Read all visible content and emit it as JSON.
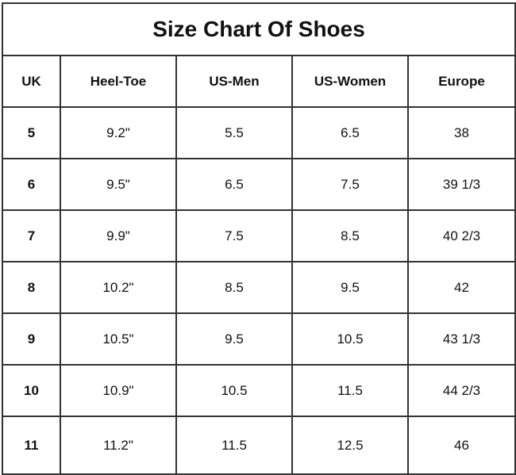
{
  "title": "Size Chart Of Shoes",
  "headers": [
    "UK",
    "Heel-Toe",
    "US-Men",
    "US-Women",
    "Europe"
  ],
  "rows": [
    [
      "5",
      "9.2\"",
      "5.5",
      "6.5",
      "38"
    ],
    [
      "6",
      "9.5\"",
      "6.5",
      "7.5",
      "39 1/3"
    ],
    [
      "7",
      "9.9\"",
      "7.5",
      "8.5",
      "40 2/3"
    ],
    [
      "8",
      "10.2\"",
      "8.5",
      "9.5",
      "42"
    ],
    [
      "9",
      "10.5\"",
      "9.5",
      "10.5",
      "43 1/3"
    ],
    [
      "10",
      "10.9\"",
      "10.5",
      "11.5",
      "44 2/3"
    ],
    [
      "11",
      "11.2\"",
      "11.5",
      "12.5",
      "46"
    ]
  ]
}
